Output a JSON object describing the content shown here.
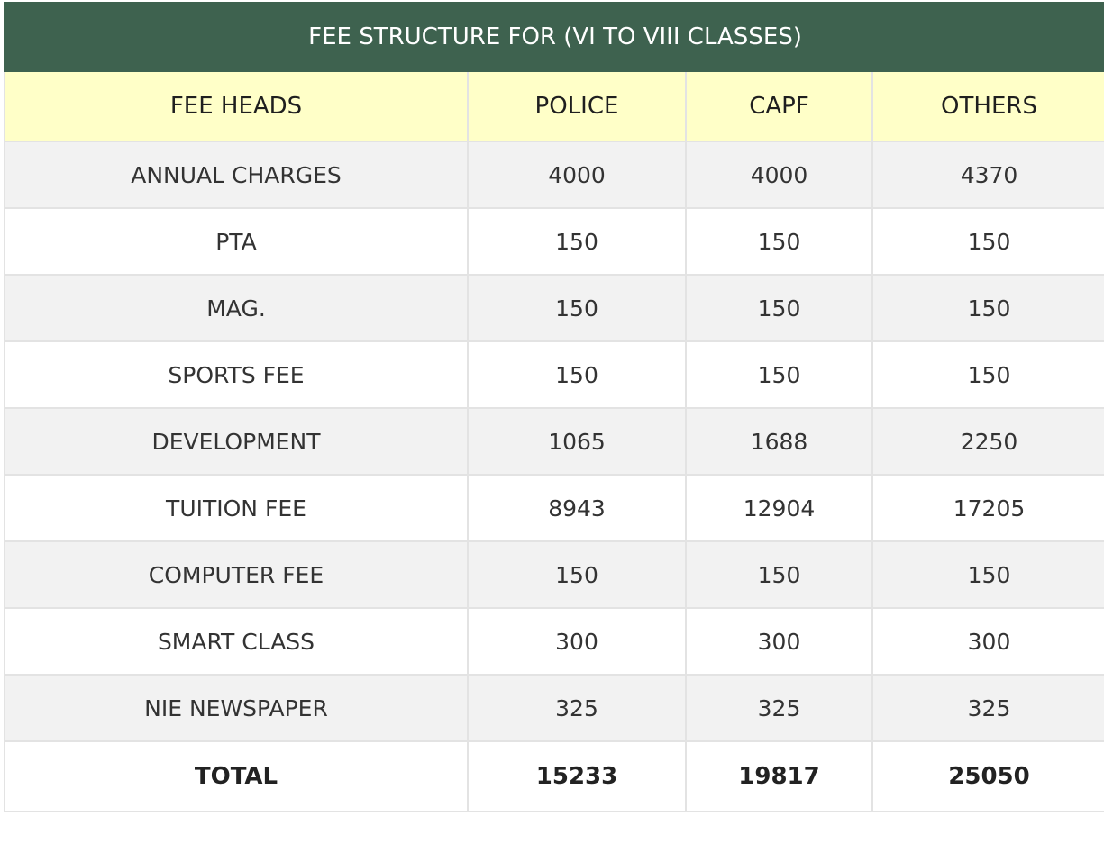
{
  "title": "FEE STRUCTURE FOR (VI TO VIII CLASSES)",
  "headers": [
    "FEE HEADS",
    "POLICE",
    "CAPF",
    "OTHERS"
  ],
  "rows": [
    [
      "ANNUAL CHARGES",
      "4000",
      "4000",
      "4370"
    ],
    [
      "PTA",
      "150",
      "150",
      "150"
    ],
    [
      "MAG.",
      "150",
      "150",
      "150"
    ],
    [
      "SPORTS FEE",
      "150",
      "150",
      "150"
    ],
    [
      "DEVELOPMENT",
      "1065",
      "1688",
      "2250"
    ],
    [
      "TUITION FEE",
      "8943",
      "12904",
      "17205"
    ],
    [
      "COMPUTER FEE",
      "150",
      "150",
      "150"
    ],
    [
      "SMART CLASS",
      "300",
      "300",
      "300"
    ],
    [
      "NIE NEWSPAPER",
      "325",
      "325",
      "325"
    ]
  ],
  "total": [
    "TOTAL",
    "15233",
    "19817",
    "25050"
  ],
  "colors": {
    "title_bg": "#3e624f",
    "header_bg": "#ffffc8",
    "stripe_bg": "#f2f2f2"
  }
}
